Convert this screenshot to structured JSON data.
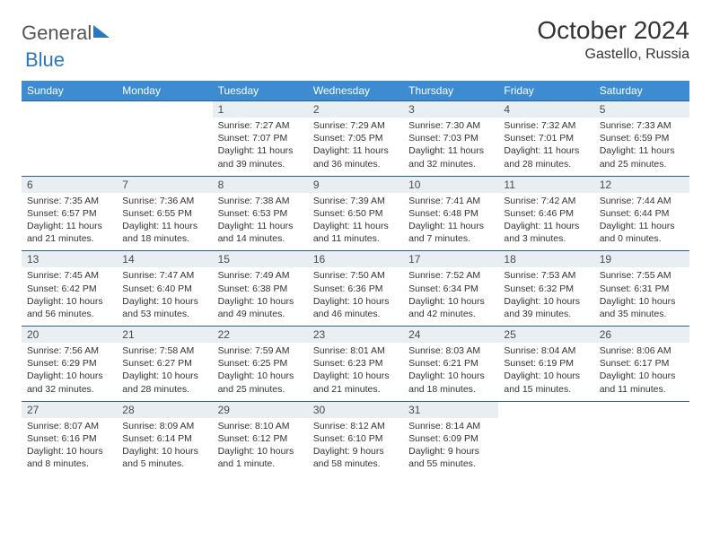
{
  "brand": {
    "part1": "General",
    "part2": "Blue"
  },
  "title": "October 2024",
  "location": "Gastello, Russia",
  "colors": {
    "header_bg": "#3d8bd0",
    "header_text": "#ffffff",
    "daynum_bg": "#e9eef2",
    "row_border": "#2a5d8f",
    "brand_blue": "#2a77bf"
  },
  "day_labels": [
    "Sunday",
    "Monday",
    "Tuesday",
    "Wednesday",
    "Thursday",
    "Friday",
    "Saturday"
  ],
  "weeks": [
    [
      null,
      null,
      {
        "n": "1",
        "sunrise": "7:27 AM",
        "sunset": "7:07 PM",
        "day_h": "11",
        "day_m": "39"
      },
      {
        "n": "2",
        "sunrise": "7:29 AM",
        "sunset": "7:05 PM",
        "day_h": "11",
        "day_m": "36"
      },
      {
        "n": "3",
        "sunrise": "7:30 AM",
        "sunset": "7:03 PM",
        "day_h": "11",
        "day_m": "32"
      },
      {
        "n": "4",
        "sunrise": "7:32 AM",
        "sunset": "7:01 PM",
        "day_h": "11",
        "day_m": "28"
      },
      {
        "n": "5",
        "sunrise": "7:33 AM",
        "sunset": "6:59 PM",
        "day_h": "11",
        "day_m": "25"
      }
    ],
    [
      {
        "n": "6",
        "sunrise": "7:35 AM",
        "sunset": "6:57 PM",
        "day_h": "11",
        "day_m": "21"
      },
      {
        "n": "7",
        "sunrise": "7:36 AM",
        "sunset": "6:55 PM",
        "day_h": "11",
        "day_m": "18"
      },
      {
        "n": "8",
        "sunrise": "7:38 AM",
        "sunset": "6:53 PM",
        "day_h": "11",
        "day_m": "14"
      },
      {
        "n": "9",
        "sunrise": "7:39 AM",
        "sunset": "6:50 PM",
        "day_h": "11",
        "day_m": "11"
      },
      {
        "n": "10",
        "sunrise": "7:41 AM",
        "sunset": "6:48 PM",
        "day_h": "11",
        "day_m": "7"
      },
      {
        "n": "11",
        "sunrise": "7:42 AM",
        "sunset": "6:46 PM",
        "day_h": "11",
        "day_m": "3"
      },
      {
        "n": "12",
        "sunrise": "7:44 AM",
        "sunset": "6:44 PM",
        "day_h": "11",
        "day_m": "0"
      }
    ],
    [
      {
        "n": "13",
        "sunrise": "7:45 AM",
        "sunset": "6:42 PM",
        "day_h": "10",
        "day_m": "56"
      },
      {
        "n": "14",
        "sunrise": "7:47 AM",
        "sunset": "6:40 PM",
        "day_h": "10",
        "day_m": "53"
      },
      {
        "n": "15",
        "sunrise": "7:49 AM",
        "sunset": "6:38 PM",
        "day_h": "10",
        "day_m": "49"
      },
      {
        "n": "16",
        "sunrise": "7:50 AM",
        "sunset": "6:36 PM",
        "day_h": "10",
        "day_m": "46"
      },
      {
        "n": "17",
        "sunrise": "7:52 AM",
        "sunset": "6:34 PM",
        "day_h": "10",
        "day_m": "42"
      },
      {
        "n": "18",
        "sunrise": "7:53 AM",
        "sunset": "6:32 PM",
        "day_h": "10",
        "day_m": "39"
      },
      {
        "n": "19",
        "sunrise": "7:55 AM",
        "sunset": "6:31 PM",
        "day_h": "10",
        "day_m": "35"
      }
    ],
    [
      {
        "n": "20",
        "sunrise": "7:56 AM",
        "sunset": "6:29 PM",
        "day_h": "10",
        "day_m": "32"
      },
      {
        "n": "21",
        "sunrise": "7:58 AM",
        "sunset": "6:27 PM",
        "day_h": "10",
        "day_m": "28"
      },
      {
        "n": "22",
        "sunrise": "7:59 AM",
        "sunset": "6:25 PM",
        "day_h": "10",
        "day_m": "25"
      },
      {
        "n": "23",
        "sunrise": "8:01 AM",
        "sunset": "6:23 PM",
        "day_h": "10",
        "day_m": "21"
      },
      {
        "n": "24",
        "sunrise": "8:03 AM",
        "sunset": "6:21 PM",
        "day_h": "10",
        "day_m": "18"
      },
      {
        "n": "25",
        "sunrise": "8:04 AM",
        "sunset": "6:19 PM",
        "day_h": "10",
        "day_m": "15"
      },
      {
        "n": "26",
        "sunrise": "8:06 AM",
        "sunset": "6:17 PM",
        "day_h": "10",
        "day_m": "11"
      }
    ],
    [
      {
        "n": "27",
        "sunrise": "8:07 AM",
        "sunset": "6:16 PM",
        "day_h": "10",
        "day_m": "8"
      },
      {
        "n": "28",
        "sunrise": "8:09 AM",
        "sunset": "6:14 PM",
        "day_h": "10",
        "day_m": "5"
      },
      {
        "n": "29",
        "sunrise": "8:10 AM",
        "sunset": "6:12 PM",
        "day_h": "10",
        "day_m": "1"
      },
      {
        "n": "30",
        "sunrise": "8:12 AM",
        "sunset": "6:10 PM",
        "day_h": "9",
        "day_m": "58"
      },
      {
        "n": "31",
        "sunrise": "8:14 AM",
        "sunset": "6:09 PM",
        "day_h": "9",
        "day_m": "55"
      },
      null,
      null
    ]
  ],
  "labels": {
    "sunrise": "Sunrise:",
    "sunset": "Sunset:",
    "daylight": "Daylight:",
    "hours": "hours",
    "and": "and",
    "minute_singular": "minute.",
    "minute_plural": "minutes."
  }
}
